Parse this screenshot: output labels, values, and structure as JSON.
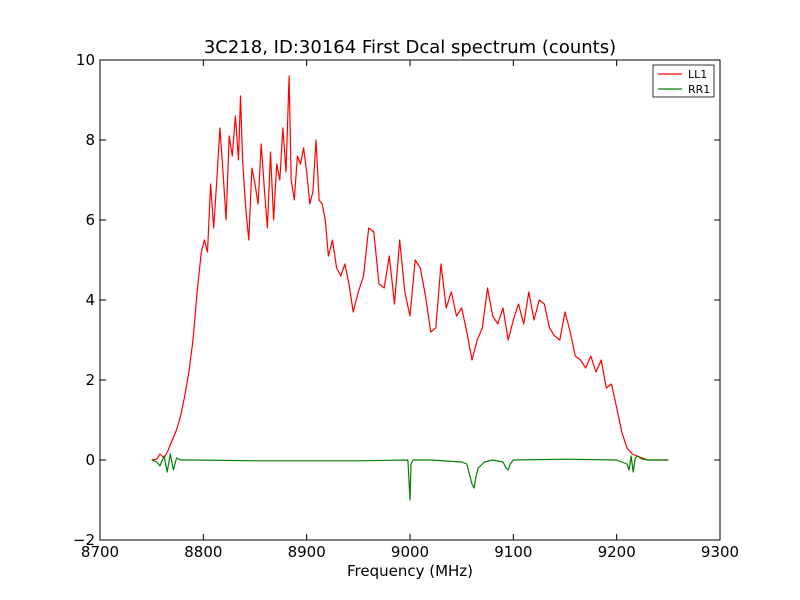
{
  "chart_data": {
    "type": "line",
    "title": "3C218, ID:30164 First Dcal spectrum (counts)",
    "xlabel": "Frequency (MHz)",
    "ylabel": "",
    "xlim": [
      8700,
      9300
    ],
    "ylim": [
      -2,
      10
    ],
    "xticks": [
      8700,
      8800,
      8900,
      9000,
      9100,
      9200,
      9300
    ],
    "yticks": [
      -2,
      0,
      2,
      4,
      6,
      8,
      10
    ],
    "xtick_labels": [
      "8700",
      "8800",
      "8900",
      "9000",
      "9100",
      "9200",
      "9300"
    ],
    "ytick_labels": [
      "−2",
      "0",
      "2",
      "4",
      "6",
      "8",
      "10"
    ],
    "grid": false,
    "legend_position": "top-right",
    "series": [
      {
        "name": "LL1",
        "color": "#ff0000",
        "x": [
          8750,
          8755,
          8758,
          8762,
          8766,
          8770,
          8774,
          8778,
          8782,
          8786,
          8790,
          8794,
          8798,
          8801,
          8804,
          8807,
          8810,
          8813,
          8816,
          8819,
          8822,
          8825,
          8828,
          8831,
          8834,
          8836,
          8838,
          8841,
          8844,
          8847,
          8850,
          8853,
          8856,
          8859,
          8862,
          8865,
          8868,
          8871,
          8874,
          8877,
          8880,
          8883,
          8885,
          8888,
          8891,
          8894,
          8897,
          8900,
          8903,
          8906,
          8909,
          8912,
          8915,
          8918,
          8921,
          8925,
          8929,
          8933,
          8937,
          8941,
          8945,
          8950,
          8955,
          8960,
          8965,
          8970,
          8975,
          8980,
          8985,
          8990,
          8995,
          9000,
          9005,
          9010,
          9015,
          9020,
          9025,
          9030,
          9035,
          9040,
          9045,
          9050,
          9055,
          9060,
          9065,
          9070,
          9075,
          9080,
          9085,
          9090,
          9095,
          9100,
          9105,
          9110,
          9115,
          9120,
          9125,
          9130,
          9135,
          9140,
          9145,
          9150,
          9155,
          9160,
          9165,
          9170,
          9175,
          9180,
          9185,
          9190,
          9195,
          9200,
          9205,
          9210,
          9215,
          9220,
          9225,
          9230,
          9240,
          9250
        ],
        "y": [
          0.0,
          0.02,
          0.15,
          0.05,
          0.25,
          0.5,
          0.75,
          1.1,
          1.6,
          2.2,
          3.0,
          4.2,
          5.2,
          5.5,
          5.2,
          6.9,
          5.8,
          7.0,
          8.3,
          7.2,
          6.0,
          8.1,
          7.6,
          8.6,
          7.5,
          9.1,
          7.5,
          6.3,
          5.5,
          7.3,
          6.9,
          6.4,
          7.9,
          6.8,
          5.8,
          7.7,
          6.0,
          7.4,
          7.0,
          8.3,
          7.2,
          9.6,
          7.0,
          6.5,
          7.6,
          7.4,
          7.8,
          7.2,
          6.4,
          6.7,
          8.0,
          6.5,
          6.4,
          6.0,
          5.1,
          5.5,
          4.8,
          4.6,
          4.9,
          4.4,
          3.7,
          4.2,
          4.6,
          5.8,
          5.7,
          4.4,
          4.3,
          5.1,
          3.9,
          5.5,
          4.2,
          3.6,
          5.0,
          4.8,
          4.1,
          3.2,
          3.3,
          4.9,
          3.8,
          4.2,
          3.6,
          3.8,
          3.2,
          2.5,
          3.0,
          3.3,
          4.3,
          3.6,
          3.4,
          3.8,
          3.0,
          3.5,
          3.9,
          3.4,
          4.2,
          3.5,
          4.0,
          3.9,
          3.3,
          3.1,
          3.0,
          3.7,
          3.2,
          2.6,
          2.5,
          2.3,
          2.6,
          2.2,
          2.5,
          1.8,
          1.9,
          1.3,
          0.7,
          0.3,
          0.15,
          0.1,
          0.05,
          0.0,
          0.0,
          0.0
        ]
      },
      {
        "name": "RR1",
        "color": "#008000",
        "x": [
          8750,
          8755,
          8758,
          8762,
          8765,
          8768,
          8771,
          8774,
          8778,
          8790,
          8850,
          8950,
          8998,
          9000,
          9001,
          9003,
          9020,
          9050,
          9055,
          9058,
          9060,
          9062,
          9064,
          9066,
          9068,
          9072,
          9080,
          9090,
          9093,
          9095,
          9097,
          9100,
          9150,
          9200,
          9210,
          9212,
          9214,
          9216,
          9218,
          9220,
          9224,
          9230,
          9240,
          9250
        ],
        "y": [
          0.0,
          -0.05,
          -0.15,
          0.1,
          -0.3,
          0.15,
          -0.25,
          0.05,
          0.0,
          0.0,
          -0.02,
          -0.02,
          0.0,
          -1.0,
          -0.1,
          0.0,
          0.0,
          -0.05,
          -0.1,
          -0.4,
          -0.6,
          -0.7,
          -0.4,
          -0.2,
          -0.15,
          -0.05,
          0.0,
          -0.05,
          -0.2,
          -0.25,
          -0.1,
          0.0,
          0.02,
          0.0,
          -0.1,
          -0.25,
          0.1,
          -0.3,
          0.05,
          0.1,
          0.03,
          0.0,
          0.0,
          0.0
        ]
      }
    ]
  }
}
